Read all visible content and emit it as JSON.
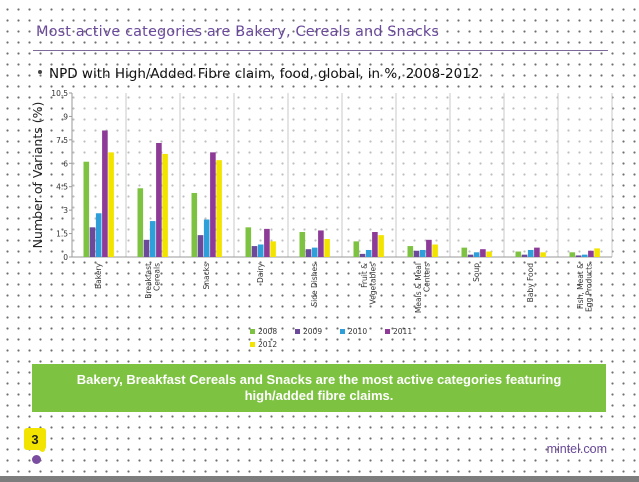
{
  "slide": {
    "title": "Most active categories are Bakery, Cereals and Snacks",
    "subtitle": "NPD with High/Added Fibre claim,  food, global,  in %, 2008-2012",
    "callout": "Bakery, Breakfast  Cereals and Snacks are the most active categories featuring high/added  fibre claims.",
    "page_number": "3",
    "brand": "mintel.com"
  },
  "colors": {
    "2008": "#7dc241",
    "2009": "#6b4a9c",
    "2010": "#2e9fd8",
    "2011": "#8d3b96",
    "2012": "#f3e400",
    "callout_bg": "#7dc241",
    "title": "#6a4a9a"
  },
  "chart_data": {
    "type": "bar",
    "title": "",
    "xlabel": "",
    "ylabel": "Number of Variants (%)",
    "ylim": [
      0,
      10.5
    ],
    "yticks": [
      "0",
      "1.5",
      "3",
      "4.5",
      "6",
      "7.5",
      "9",
      "10.5"
    ],
    "ytick_values": [
      0,
      1.5,
      3,
      4.5,
      6,
      7.5,
      9,
      10.5
    ],
    "grid": "vertical",
    "legend_position": "bottom",
    "categories": [
      "Bakery",
      "Breakfast Cereals",
      "Snacks",
      "Dairy",
      "Side Dishes",
      "Fruit & Vegetables",
      "Meals & Meal Centers",
      "Soup",
      "Baby Food",
      "Fish, Meat & Egg Products"
    ],
    "category_labels": [
      [
        "Bakery"
      ],
      [
        "Breakfast",
        "Cereals"
      ],
      [
        "Snacks"
      ],
      [
        "Dairy"
      ],
      [
        "Side Dishes"
      ],
      [
        "Fruit &",
        "Vegetables"
      ],
      [
        "Meals & Meal",
        "Centers"
      ],
      [
        "Soup"
      ],
      [
        "Baby Food"
      ],
      [
        "Fish, Meat &",
        "Egg Products"
      ]
    ],
    "series": [
      {
        "name": "2008",
        "values": [
          6.1,
          4.4,
          4.1,
          1.9,
          1.6,
          1.0,
          0.7,
          0.6,
          0.35,
          0.3
        ]
      },
      {
        "name": "2009",
        "values": [
          1.9,
          1.1,
          1.4,
          0.7,
          0.5,
          0.2,
          0.4,
          0.15,
          0.15,
          0.1
        ]
      },
      {
        "name": "2010",
        "values": [
          2.8,
          2.3,
          2.4,
          0.8,
          0.6,
          0.45,
          0.45,
          0.3,
          0.45,
          0.15
        ]
      },
      {
        "name": "2011",
        "values": [
          8.1,
          7.3,
          6.7,
          1.8,
          1.7,
          1.6,
          1.1,
          0.5,
          0.6,
          0.4
        ]
      },
      {
        "name": "2012",
        "values": [
          6.7,
          6.6,
          6.2,
          1.0,
          1.15,
          1.4,
          0.8,
          0.35,
          0.3,
          0.55
        ]
      }
    ]
  }
}
